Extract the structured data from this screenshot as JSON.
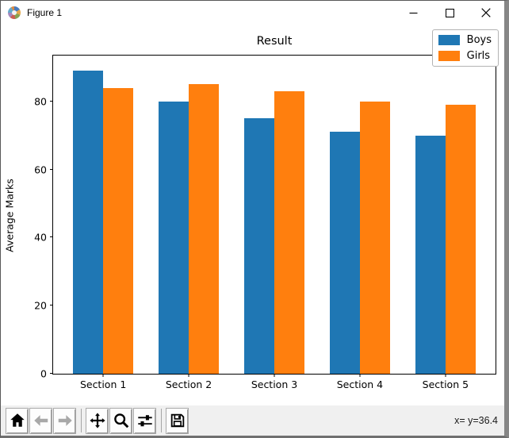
{
  "window": {
    "title": "Figure 1",
    "controls": {
      "minimize": "minimize",
      "maximize": "maximize",
      "close": "close"
    }
  },
  "chart_data": {
    "type": "bar",
    "title": "Result",
    "xlabel": "",
    "ylabel": "Average Marks",
    "categories": [
      "Section 1",
      "Section 2",
      "Section 3",
      "Section 4",
      "Section 5"
    ],
    "series": [
      {
        "name": "Boys",
        "color": "#1f77b4",
        "values": [
          89,
          80,
          75,
          71,
          70
        ]
      },
      {
        "name": "Girls",
        "color": "#ff7f0e",
        "values": [
          84,
          85,
          83,
          80,
          79
        ]
      }
    ],
    "bar_width": 0.35,
    "yticks": [
      0,
      20,
      40,
      60,
      80
    ],
    "ylim": [
      0,
      93.45
    ],
    "xlim": [
      -0.585,
      4.585
    ],
    "grid": false,
    "legend_position": "upper right"
  },
  "toolbar": {
    "buttons": [
      {
        "id": "home",
        "icon": "home-icon",
        "enabled": true,
        "sep_after": false
      },
      {
        "id": "back",
        "icon": "back-arrow-icon",
        "enabled": false,
        "sep_after": false
      },
      {
        "id": "forward",
        "icon": "forward-arrow-icon",
        "enabled": false,
        "sep_after": true
      },
      {
        "id": "pan",
        "icon": "pan-arrows-icon",
        "enabled": true,
        "sep_after": false
      },
      {
        "id": "zoom",
        "icon": "zoom-magnifier-icon",
        "enabled": true,
        "sep_after": false
      },
      {
        "id": "configure-subplots",
        "icon": "sliders-icon",
        "enabled": true,
        "sep_after": true
      },
      {
        "id": "save",
        "icon": "save-floppy-icon",
        "enabled": true,
        "sep_after": false
      }
    ],
    "status": "x= y=36.4"
  }
}
